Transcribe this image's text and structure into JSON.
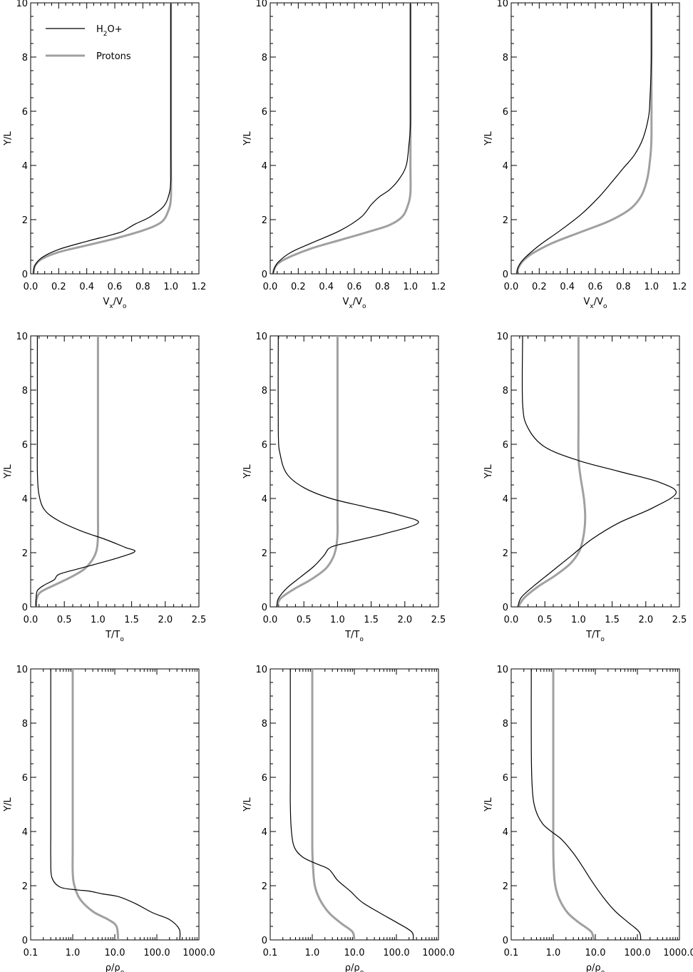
{
  "chart_data": [
    {
      "type": "line",
      "panel": "vx-1",
      "xscale": "linear",
      "xlabel": "V_x/V_o",
      "ylabel": "Y/L",
      "xlim": [
        0,
        1.2
      ],
      "ylim": [
        0,
        10
      ],
      "xticks": [
        "0.0",
        "0.2",
        "0.4",
        "0.6",
        "0.8",
        "1.0",
        "1.2"
      ],
      "yticks": [
        "0",
        "2",
        "4",
        "6",
        "8",
        "10"
      ],
      "legend": true,
      "series": [
        {
          "name": "H2O+",
          "color": "#000000",
          "x": [
            0.02,
            0.03,
            0.08,
            0.2,
            0.4,
            0.55,
            0.65,
            0.7,
            0.75,
            0.85,
            0.95,
            0.99,
            1.0,
            1.0,
            1.0,
            1.0
          ],
          "y": [
            0,
            0.3,
            0.6,
            0.9,
            1.2,
            1.4,
            1.55,
            1.7,
            1.85,
            2.1,
            2.5,
            3.0,
            3.5,
            4.5,
            6,
            10
          ]
        },
        {
          "name": "Protons",
          "color": "#a0a0a0",
          "x": [
            0.02,
            0.03,
            0.08,
            0.2,
            0.4,
            0.6,
            0.8,
            0.93,
            0.98,
            1.0,
            1.0,
            1.0,
            1.0
          ],
          "y": [
            0,
            0.3,
            0.55,
            0.8,
            1.05,
            1.3,
            1.6,
            1.9,
            2.3,
            2.8,
            4,
            6,
            10
          ]
        }
      ]
    },
    {
      "type": "line",
      "panel": "vx-2",
      "xscale": "linear",
      "xlabel": "V_x/V_o",
      "ylabel": "Y/L",
      "xlim": [
        0,
        1.2
      ],
      "ylim": [
        0,
        10
      ],
      "xticks": [
        "0.0",
        "0.2",
        "0.4",
        "0.6",
        "0.8",
        "1.0",
        "1.2"
      ],
      "yticks": [
        "0",
        "2",
        "4",
        "6",
        "8",
        "10"
      ],
      "legend": false,
      "series": [
        {
          "name": "H2O+",
          "color": "#000000",
          "x": [
            0.02,
            0.03,
            0.06,
            0.15,
            0.3,
            0.5,
            0.65,
            0.72,
            0.78,
            0.85,
            0.92,
            0.97,
            0.99,
            1.0,
            1.0,
            1.0
          ],
          "y": [
            0,
            0.2,
            0.45,
            0.8,
            1.15,
            1.6,
            2.1,
            2.55,
            2.85,
            3.1,
            3.5,
            4.0,
            4.8,
            5.5,
            7,
            10
          ]
        },
        {
          "name": "Protons",
          "color": "#a0a0a0",
          "x": [
            0.02,
            0.03,
            0.06,
            0.15,
            0.3,
            0.5,
            0.7,
            0.85,
            0.94,
            0.98,
            1.0,
            1.0,
            1.0,
            1.0
          ],
          "y": [
            0,
            0.2,
            0.4,
            0.65,
            0.95,
            1.25,
            1.55,
            1.8,
            2.1,
            2.5,
            3.0,
            4.0,
            6,
            10
          ]
        }
      ]
    },
    {
      "type": "line",
      "panel": "vx-3",
      "xscale": "linear",
      "xlabel": "V_x/V_o",
      "ylabel": "Y/L",
      "xlim": [
        0,
        1.2
      ],
      "ylim": [
        0,
        10
      ],
      "xticks": [
        "0.0",
        "0.2",
        "0.4",
        "0.6",
        "0.8",
        "1.0",
        "1.2"
      ],
      "yticks": [
        "0",
        "2",
        "4",
        "6",
        "8",
        "10"
      ],
      "legend": false,
      "series": [
        {
          "name": "H2O+",
          "color": "#000000",
          "x": [
            0.04,
            0.05,
            0.09,
            0.2,
            0.35,
            0.5,
            0.62,
            0.72,
            0.8,
            0.88,
            0.94,
            0.98,
            0.99,
            1.0,
            1.0
          ],
          "y": [
            0,
            0.25,
            0.55,
            1.05,
            1.6,
            2.2,
            2.8,
            3.4,
            3.9,
            4.4,
            5.0,
            5.8,
            6.5,
            8,
            10
          ]
        },
        {
          "name": "Protons",
          "color": "#a0a0a0",
          "x": [
            0.04,
            0.05,
            0.08,
            0.15,
            0.3,
            0.5,
            0.7,
            0.85,
            0.93,
            0.97,
            0.99,
            1.0,
            1.0,
            1.0
          ],
          "y": [
            0,
            0.2,
            0.45,
            0.75,
            1.15,
            1.55,
            1.95,
            2.4,
            2.9,
            3.5,
            4.2,
            5.0,
            7,
            10
          ]
        }
      ]
    },
    {
      "type": "line",
      "panel": "temp-1",
      "xscale": "linear",
      "xlabel": "T/T_o",
      "ylabel": "Y/L",
      "xlim": [
        0,
        2.5
      ],
      "ylim": [
        0,
        10
      ],
      "xticks": [
        "0.0",
        "0.5",
        "1.0",
        "1.5",
        "2.0",
        "2.5"
      ],
      "yticks": [
        "0",
        "2",
        "4",
        "6",
        "8",
        "10"
      ],
      "legend": false,
      "series": [
        {
          "name": "H2O+",
          "color": "#000000",
          "x": [
            0.08,
            0.08,
            0.1,
            0.2,
            0.35,
            0.42,
            0.7,
            1.0,
            1.35,
            1.55,
            1.4,
            1.1,
            0.75,
            0.4,
            0.2,
            0.12,
            0.1,
            0.1,
            0.1
          ],
          "y": [
            0,
            0.3,
            0.6,
            0.8,
            1.0,
            1.2,
            1.4,
            1.6,
            1.85,
            2.05,
            2.2,
            2.5,
            2.8,
            3.2,
            3.6,
            4.2,
            5.0,
            6.2,
            10
          ]
        },
        {
          "name": "Protons",
          "color": "#a0a0a0",
          "x": [
            0.08,
            0.09,
            0.15,
            0.35,
            0.6,
            0.8,
            0.92,
            0.98,
            1.0,
            1.0,
            1.0,
            1.0
          ],
          "y": [
            0,
            0.3,
            0.55,
            0.8,
            1.1,
            1.4,
            1.75,
            2.1,
            2.6,
            3.5,
            6,
            10
          ]
        }
      ]
    },
    {
      "type": "line",
      "panel": "temp-2",
      "xscale": "linear",
      "xlabel": "T/T_o",
      "ylabel": "Y/L",
      "xlim": [
        0,
        2.5
      ],
      "ylim": [
        0,
        10
      ],
      "xticks": [
        "0.0",
        "0.5",
        "1.0",
        "1.5",
        "2.0",
        "2.5"
      ],
      "yticks": [
        "0",
        "2",
        "4",
        "6",
        "8",
        "10"
      ],
      "legend": false,
      "series": [
        {
          "name": "H2O+",
          "color": "#000000",
          "x": [
            0.1,
            0.12,
            0.25,
            0.45,
            0.65,
            0.8,
            0.9,
            1.2,
            1.7,
            2.2,
            1.9,
            1.4,
            0.9,
            0.5,
            0.25,
            0.15,
            0.12,
            0.12
          ],
          "y": [
            0,
            0.3,
            0.7,
            1.1,
            1.5,
            1.9,
            2.2,
            2.4,
            2.7,
            3.1,
            3.4,
            3.7,
            4.0,
            4.4,
            4.9,
            5.6,
            6.5,
            10
          ]
        },
        {
          "name": "Protons",
          "color": "#a0a0a0",
          "x": [
            0.1,
            0.15,
            0.35,
            0.6,
            0.82,
            0.93,
            0.98,
            1.0,
            1.0,
            1.0,
            1.0,
            1.0
          ],
          "y": [
            0,
            0.3,
            0.65,
            1.0,
            1.4,
            1.8,
            2.2,
            2.7,
            3.2,
            4.0,
            6,
            10
          ]
        }
      ]
    },
    {
      "type": "line",
      "panel": "temp-3",
      "xscale": "linear",
      "xlabel": "T/T_o",
      "ylabel": "Y/L",
      "xlim": [
        0,
        2.5
      ],
      "ylim": [
        0,
        10
      ],
      "xticks": [
        "0.0",
        "0.5",
        "1.0",
        "1.5",
        "2.0",
        "2.5"
      ],
      "yticks": [
        "0",
        "2",
        "4",
        "6",
        "8",
        "10"
      ],
      "legend": false,
      "series": [
        {
          "name": "H2O+",
          "color": "#000000",
          "x": [
            0.1,
            0.15,
            0.35,
            0.6,
            0.9,
            1.2,
            1.6,
            2.1,
            2.45,
            2.2,
            1.6,
            1.0,
            0.5,
            0.25,
            0.17,
            0.17
          ],
          "y": [
            0,
            0.35,
            0.8,
            1.3,
            1.9,
            2.5,
            3.1,
            3.65,
            4.2,
            4.6,
            5.0,
            5.4,
            5.9,
            6.6,
            7.5,
            10
          ]
        },
        {
          "name": "Protons",
          "color": "#a0a0a0",
          "x": [
            0.1,
            0.2,
            0.4,
            0.65,
            0.88,
            1.02,
            1.08,
            1.1,
            1.08,
            1.03,
            1.0,
            1.0,
            1.0
          ],
          "y": [
            0,
            0.35,
            0.75,
            1.15,
            1.6,
            2.1,
            2.7,
            3.3,
            4.0,
            4.8,
            5.5,
            7,
            10
          ]
        }
      ]
    },
    {
      "type": "line",
      "panel": "rho-1",
      "xscale": "log",
      "xlabel": "ρ/ρ_o",
      "ylabel": "Y/L",
      "xlim": [
        0.1,
        1000
      ],
      "ylim": [
        0,
        10
      ],
      "xticks": [
        "0.1",
        "1.0",
        "10.0",
        "100.0",
        "1000.0"
      ],
      "yticks": [
        "0",
        "2",
        "4",
        "6",
        "8",
        "10"
      ],
      "legend": false,
      "series": [
        {
          "name": "H2O+",
          "color": "#000000",
          "x": [
            350,
            340,
            200,
            80,
            30,
            12,
            5,
            2.5,
            1.2,
            0.5,
            0.32,
            0.3,
            0.3,
            0.3,
            0.3
          ],
          "y": [
            0,
            0.4,
            0.75,
            1.0,
            1.35,
            1.6,
            1.7,
            1.8,
            1.85,
            1.95,
            2.3,
            3.0,
            4.0,
            6,
            10
          ]
        },
        {
          "name": "Protons",
          "color": "#a0a0a0",
          "x": [
            12,
            11,
            7,
            3,
            1.5,
            1.1,
            1.0,
            1.0,
            1.0,
            1.0
          ],
          "y": [
            0,
            0.5,
            0.75,
            1.05,
            1.5,
            2.0,
            2.5,
            3.5,
            6,
            10
          ]
        }
      ]
    },
    {
      "type": "line",
      "panel": "rho-2",
      "xscale": "log",
      "xlabel": "ρ/ρ_o",
      "ylabel": "Y/L",
      "xlim": [
        0.1,
        1000
      ],
      "ylim": [
        0,
        10
      ],
      "xticks": [
        "0.1",
        "1.0",
        "10.0",
        "100.0",
        "1000.0"
      ],
      "yticks": [
        "0",
        "2",
        "4",
        "6",
        "8",
        "10"
      ],
      "legend": false,
      "series": [
        {
          "name": "H2O+",
          "color": "#000000",
          "x": [
            250,
            230,
            100,
            40,
            15,
            8,
            4,
            2.5,
            1.3,
            0.6,
            0.38,
            0.32,
            0.3,
            0.3,
            0.3
          ],
          "y": [
            0,
            0.3,
            0.65,
            1.0,
            1.4,
            1.8,
            2.2,
            2.6,
            2.8,
            3.05,
            3.4,
            4.0,
            5.0,
            6,
            10
          ]
        },
        {
          "name": "Protons",
          "color": "#a0a0a0",
          "x": [
            10,
            9,
            5,
            2.5,
            1.5,
            1.15,
            1.05,
            1.0,
            1.0,
            1.0
          ],
          "y": [
            0,
            0.3,
            0.6,
            1.0,
            1.5,
            2.0,
            2.6,
            3.5,
            6,
            10
          ]
        }
      ]
    },
    {
      "type": "line",
      "panel": "rho-3",
      "xscale": "log",
      "xlabel": "ρ/ρ_o",
      "ylabel": "Y/L",
      "xlim": [
        0.1,
        1000
      ],
      "ylim": [
        0,
        10
      ],
      "xticks": [
        "0.1",
        "1.0",
        "10.0",
        "100.0",
        "1000.0"
      ],
      "yticks": [
        "0",
        "2",
        "4",
        "6",
        "8",
        "10"
      ],
      "legend": false,
      "series": [
        {
          "name": "H2O+",
          "color": "#000000",
          "x": [
            120,
            110,
            60,
            30,
            15,
            8,
            5,
            3,
            1.6,
            0.9,
            0.55,
            0.38,
            0.32,
            0.3,
            0.3
          ],
          "y": [
            0,
            0.3,
            0.65,
            1.05,
            1.6,
            2.2,
            2.7,
            3.2,
            3.7,
            4.0,
            4.3,
            4.8,
            5.5,
            7,
            10
          ]
        },
        {
          "name": "Protons",
          "color": "#a0a0a0",
          "x": [
            9,
            8,
            4,
            2.2,
            1.4,
            1.12,
            1.03,
            1.0,
            1.0,
            1.0
          ],
          "y": [
            0,
            0.3,
            0.65,
            1.0,
            1.5,
            2.0,
            2.6,
            3.5,
            6,
            10
          ]
        }
      ]
    }
  ],
  "legend": {
    "entries": [
      {
        "label": "H2O+",
        "color": "#000000"
      },
      {
        "label": "Protons",
        "color": "#a0a0a0"
      }
    ]
  }
}
